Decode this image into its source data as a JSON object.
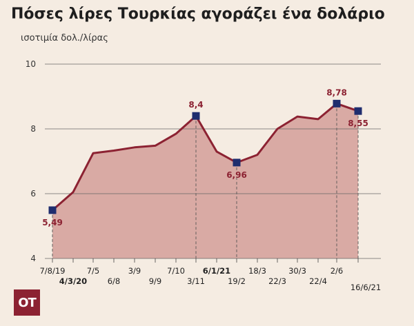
{
  "chart_data": {
    "type": "area",
    "title": "Πόσες λίρες Τουρκίας αγοράζει ένα δολάριο",
    "subtitle": "ισοτιμία δολ./λίρας",
    "ylim": [
      4,
      10
    ],
    "yticks": [
      4,
      6,
      8,
      10
    ],
    "grid": true,
    "colors": {
      "line": "#8c2232",
      "fill": "#d9aaa4",
      "marker": "#1f2d6e",
      "label": "#8c2232",
      "grid": "#666666"
    },
    "categories": [
      "7/8/19",
      "4/3/20",
      "7/5",
      "6/8",
      "3/9",
      "9/9",
      "7/10",
      "3/11",
      "6/1/21",
      "19/2",
      "18/3",
      "22/3",
      "30/3",
      "22/4",
      "2/6",
      "16/6/21"
    ],
    "label_row": [
      0,
      1,
      0,
      1,
      0,
      1,
      0,
      1,
      0,
      1,
      0,
      1,
      0,
      1,
      0,
      2
    ],
    "bold_labels": [
      "4/3/20",
      "6/1/21"
    ],
    "values": [
      5.49,
      6.05,
      7.25,
      7.33,
      7.43,
      7.48,
      7.85,
      8.4,
      7.3,
      6.96,
      7.2,
      8.0,
      8.38,
      8.3,
      8.78,
      8.55
    ],
    "markers": [
      {
        "index": 0,
        "label": "5,49",
        "label_pos": "below"
      },
      {
        "index": 7,
        "label": "8,4",
        "label_pos": "above"
      },
      {
        "index": 9,
        "label": "6,96",
        "label_pos": "below"
      },
      {
        "index": 14,
        "label": "8,78",
        "label_pos": "above"
      },
      {
        "index": 15,
        "label": "8,55",
        "label_pos": "below"
      }
    ]
  },
  "branding": {
    "logo_text": "OT"
  }
}
